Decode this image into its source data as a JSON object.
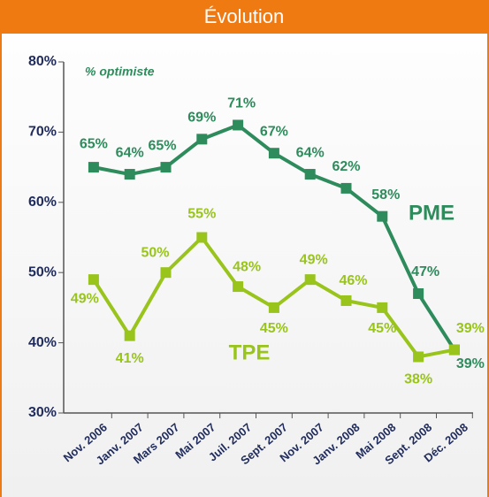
{
  "chart_data": {
    "type": "line",
    "title": "Évolution",
    "subtitle": "% optimiste",
    "categories": [
      "Nov. 2006",
      "Janv. 2007",
      "Mars 2007",
      "Mai 2007",
      "Juil. 2007",
      "Sept. 2007",
      "Nov. 2007",
      "Janv. 2008",
      "Mai 2008",
      "Sept. 2008",
      "Déc. 2008"
    ],
    "series": [
      {
        "name": "PME",
        "color": "#2e8b5c",
        "values": [
          65,
          64,
          65,
          69,
          71,
          67,
          64,
          62,
          58,
          47,
          39
        ],
        "value_labels": [
          "65%",
          "64%",
          "65%",
          "69%",
          "71%",
          "67%",
          "64%",
          "62%",
          "58%",
          "47%",
          "39%"
        ]
      },
      {
        "name": "TPE",
        "color": "#99c41c",
        "values": [
          49,
          41,
          50,
          55,
          48,
          45,
          49,
          46,
          45,
          38,
          39
        ],
        "value_labels": [
          "49%",
          "41%",
          "50%",
          "55%",
          "48%",
          "45%",
          "49%",
          "46%",
          "45%",
          "38%",
          "39%"
        ]
      }
    ],
    "ylim": [
      30,
      80
    ],
    "yticks": [
      {
        "value": 30,
        "label": "30%"
      },
      {
        "value": 40,
        "label": "40%"
      },
      {
        "value": 50,
        "label": "50%"
      },
      {
        "value": 60,
        "label": "60%"
      },
      {
        "value": 70,
        "label": "70%"
      },
      {
        "value": 80,
        "label": "80%"
      }
    ]
  }
}
